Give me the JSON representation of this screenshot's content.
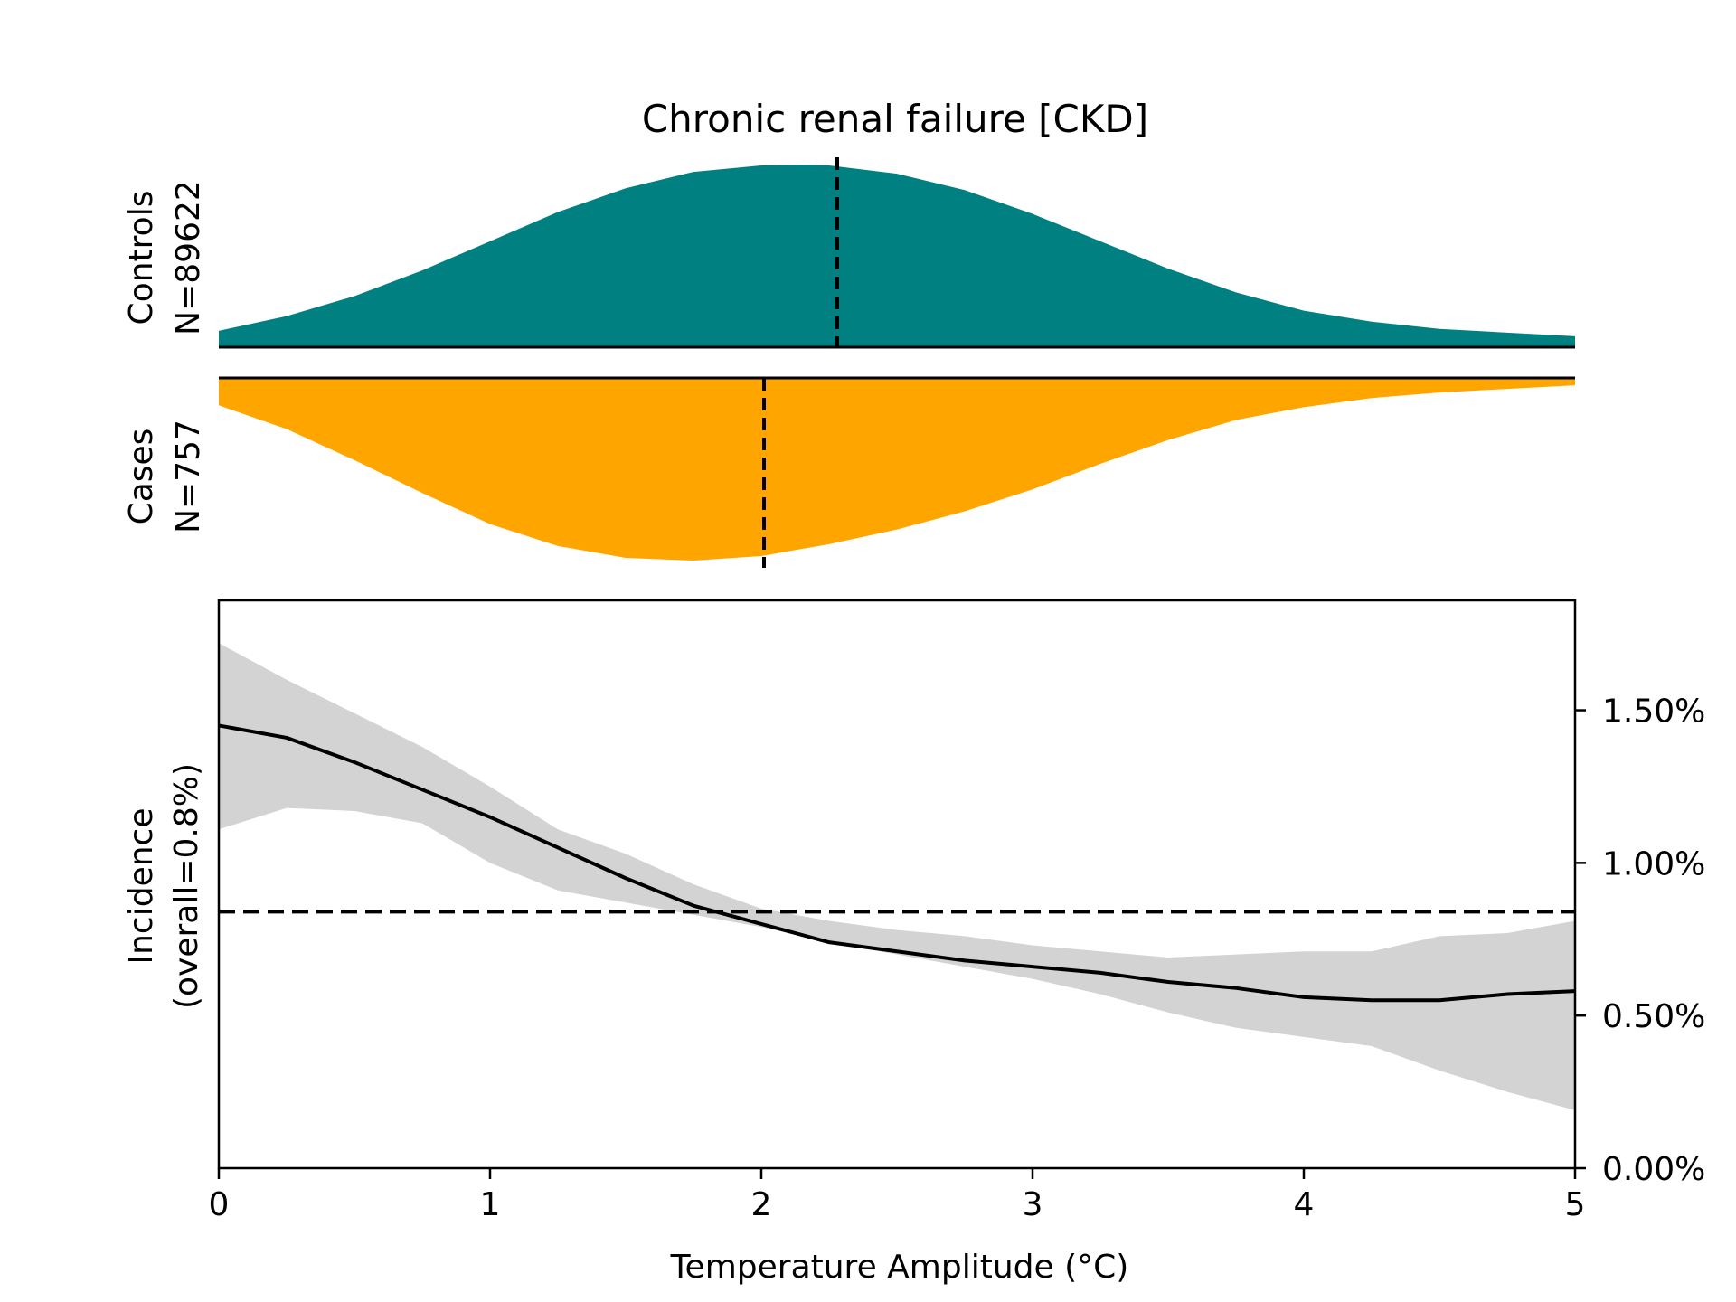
{
  "title": "Chronic renal failure [CKD]",
  "colors": {
    "controls": "#008080",
    "cases": "#ffa500",
    "band": "#d3d3d3",
    "line": "#000000"
  },
  "chart_data": [
    {
      "type": "area",
      "panel": "controls",
      "ylabel_line1": "Controls",
      "ylabel_line2": "N=89622",
      "x": [
        0,
        0.25,
        0.5,
        0.75,
        1.0,
        1.25,
        1.5,
        1.75,
        2.0,
        2.15,
        2.25,
        2.5,
        2.75,
        3.0,
        3.25,
        3.5,
        3.75,
        4.0,
        4.25,
        4.5,
        4.75,
        5.0
      ],
      "density": [
        0.09,
        0.17,
        0.28,
        0.42,
        0.58,
        0.74,
        0.87,
        0.96,
        0.995,
        1.0,
        0.995,
        0.95,
        0.86,
        0.73,
        0.58,
        0.43,
        0.3,
        0.2,
        0.14,
        0.1,
        0.08,
        0.06
      ],
      "median": 2.28,
      "xlim": [
        0,
        5
      ]
    },
    {
      "type": "area",
      "panel": "cases",
      "ylabel_line1": "Cases",
      "ylabel_line2": "N=757",
      "x": [
        0,
        0.25,
        0.5,
        0.75,
        1.0,
        1.25,
        1.5,
        1.75,
        2.0,
        2.25,
        2.5,
        2.75,
        3.0,
        3.25,
        3.5,
        3.75,
        4.0,
        4.25,
        4.5,
        4.75,
        5.0
      ],
      "density": [
        0.15,
        0.28,
        0.45,
        0.63,
        0.8,
        0.92,
        0.985,
        1.0,
        0.975,
        0.91,
        0.83,
        0.73,
        0.61,
        0.47,
        0.34,
        0.23,
        0.16,
        0.11,
        0.08,
        0.06,
        0.04
      ],
      "median": 2.01,
      "xlim": [
        0,
        5
      ]
    },
    {
      "type": "line",
      "panel": "incidence",
      "xlabel": "Temperature Amplitude (°C)",
      "ylabel_line1": "Incidence",
      "ylabel_line2": "(overall=0.8%)",
      "xlim": [
        0,
        5
      ],
      "ylim": [
        0,
        1.86
      ],
      "xticks": [
        0,
        1,
        2,
        3,
        4,
        5
      ],
      "xtick_labels": [
        "0",
        "1",
        "2",
        "3",
        "4",
        "5"
      ],
      "yticks": [
        0,
        0.5,
        1.0,
        1.5
      ],
      "ytick_labels": [
        "0.00%",
        "0.50%",
        "1.00%",
        "1.50%"
      ],
      "overall_incidence": 0.84,
      "x": [
        0,
        0.25,
        0.5,
        0.75,
        1.0,
        1.25,
        1.5,
        1.75,
        2.0,
        2.25,
        2.5,
        2.75,
        3.0,
        3.25,
        3.5,
        3.75,
        4.0,
        4.25,
        4.5,
        4.75,
        5.0
      ],
      "y": [
        1.45,
        1.41,
        1.33,
        1.24,
        1.15,
        1.05,
        0.95,
        0.86,
        0.8,
        0.74,
        0.71,
        0.68,
        0.66,
        0.64,
        0.61,
        0.59,
        0.56,
        0.55,
        0.55,
        0.57,
        0.58
      ],
      "ci_low": [
        1.11,
        1.18,
        1.17,
        1.13,
        1.0,
        0.91,
        0.87,
        0.83,
        0.79,
        0.74,
        0.7,
        0.66,
        0.62,
        0.57,
        0.51,
        0.46,
        0.43,
        0.4,
        0.32,
        0.25,
        0.19
      ],
      "ci_high": [
        1.72,
        1.6,
        1.49,
        1.38,
        1.25,
        1.11,
        1.03,
        0.93,
        0.85,
        0.81,
        0.78,
        0.76,
        0.73,
        0.71,
        0.69,
        0.7,
        0.71,
        0.71,
        0.76,
        0.77,
        0.81
      ],
      "grid": false
    }
  ]
}
